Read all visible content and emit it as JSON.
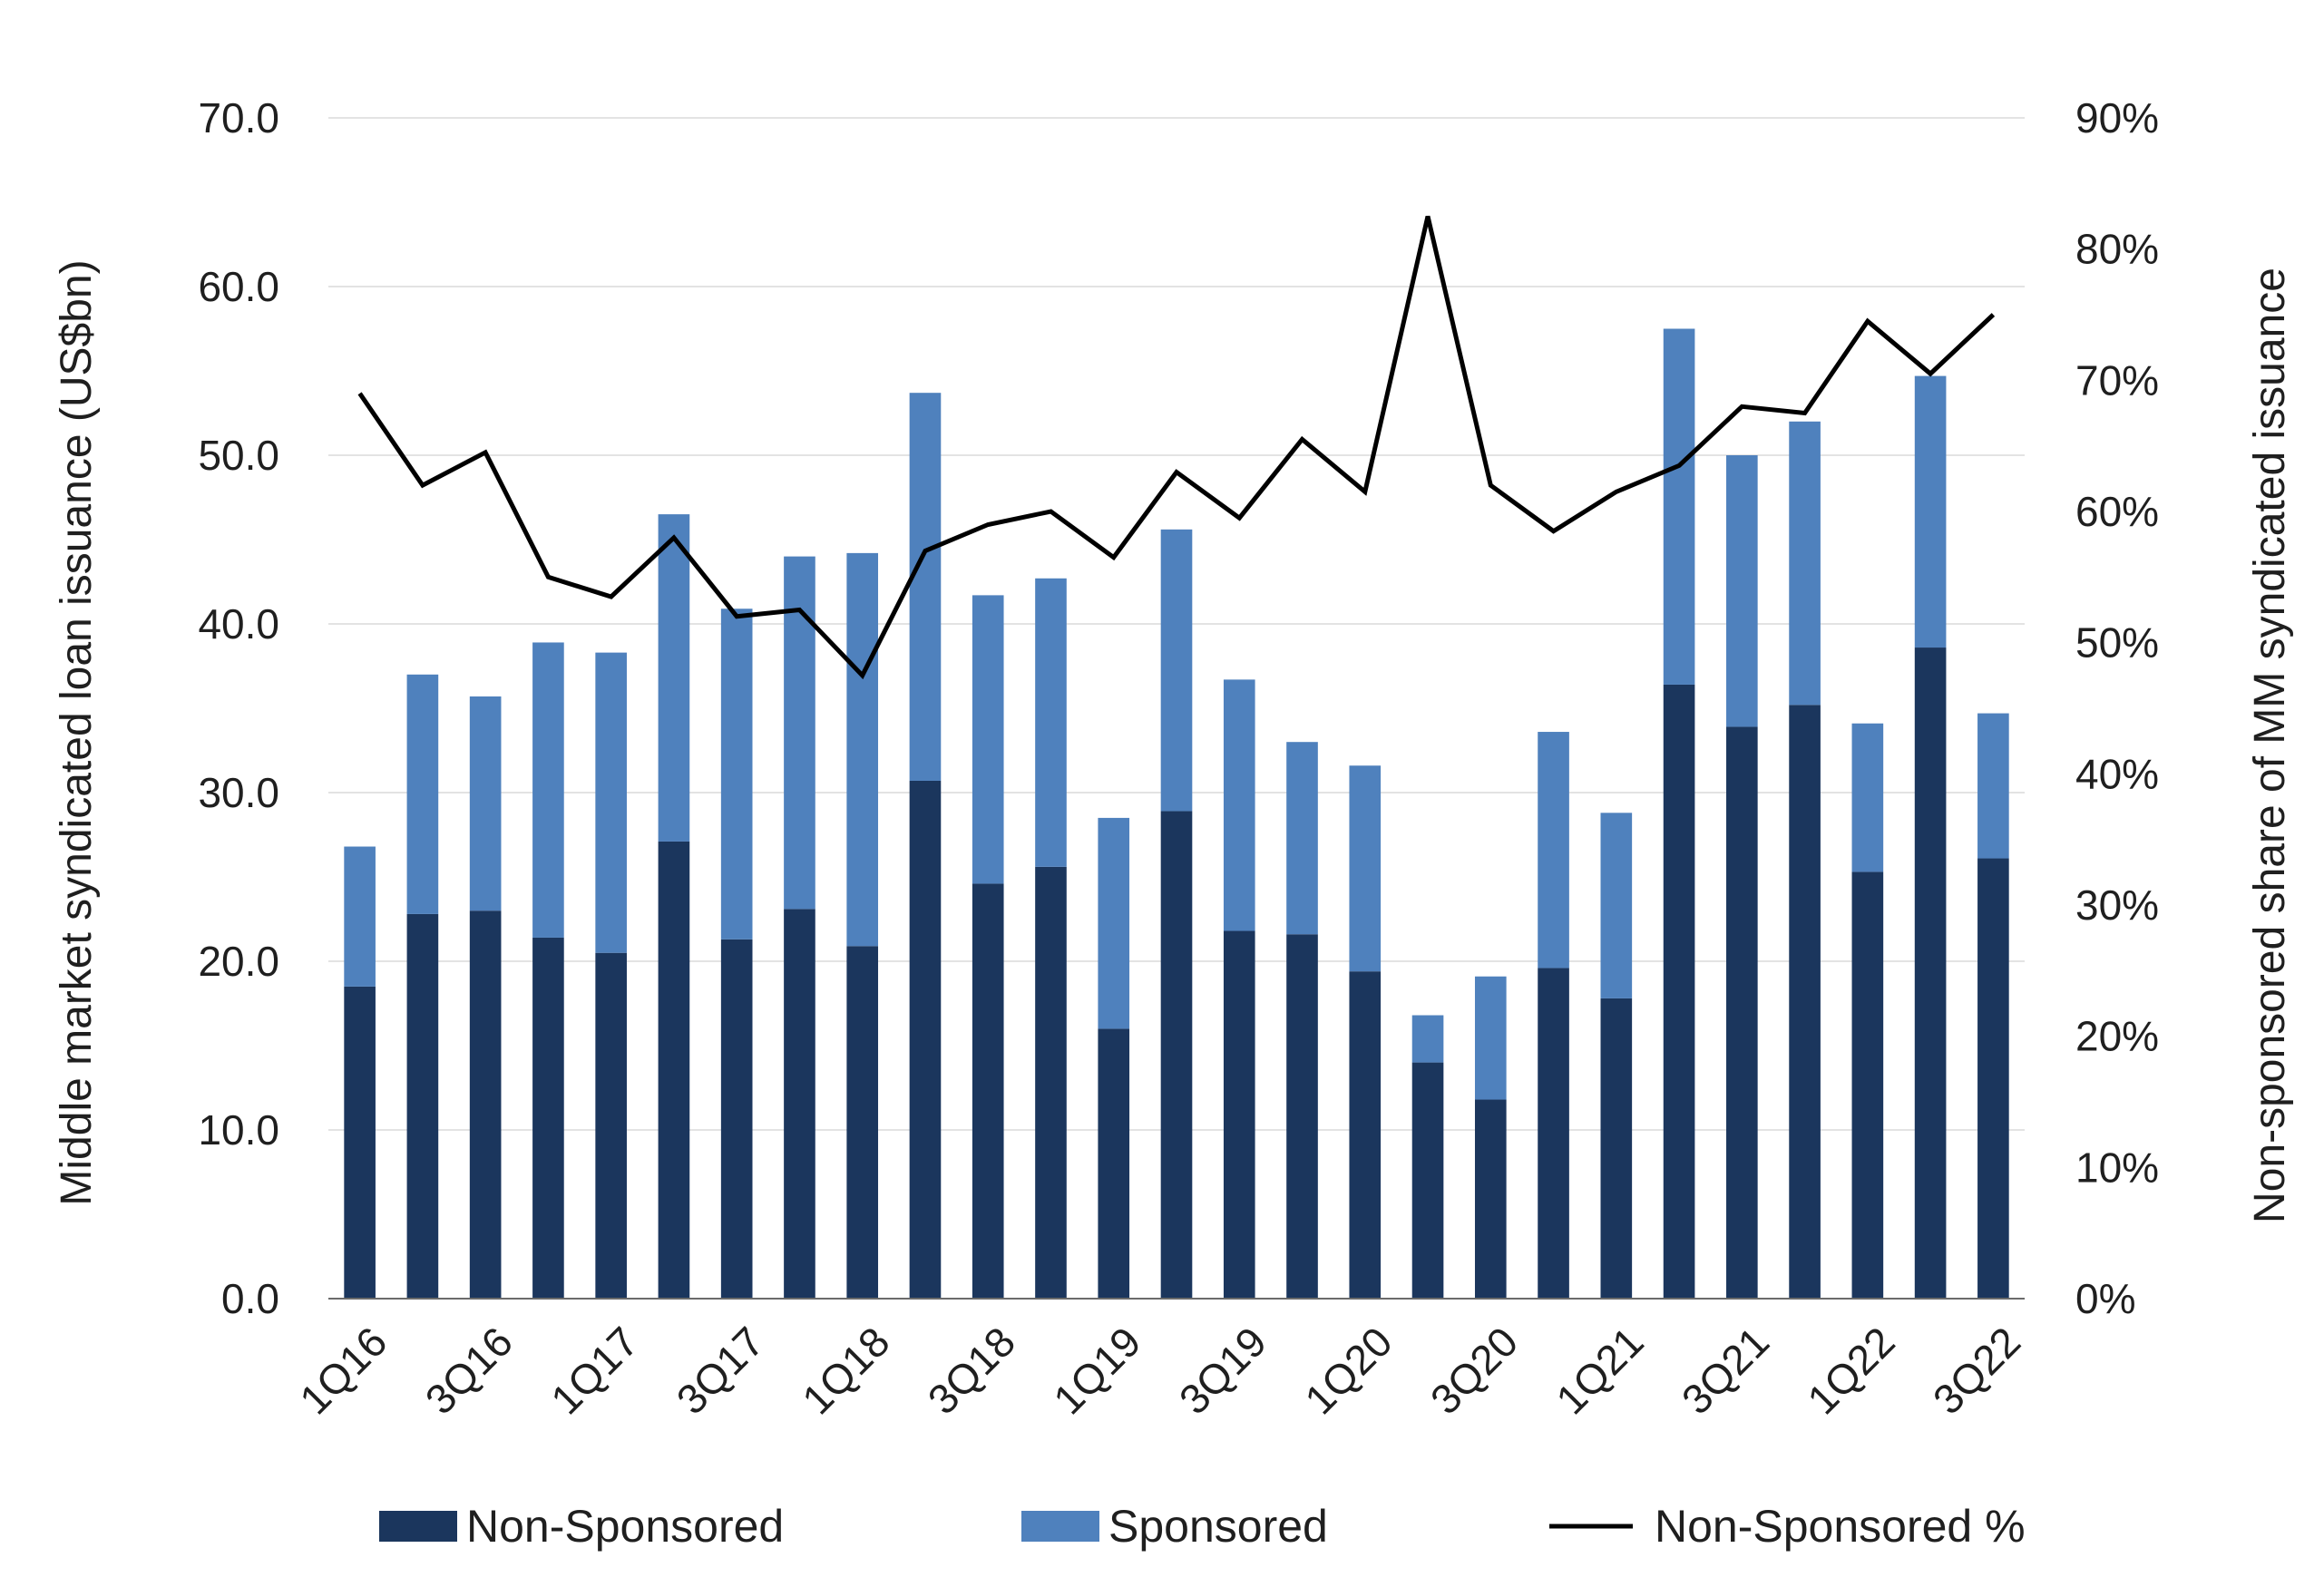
{
  "chart_data": {
    "type": "bar",
    "stacked": true,
    "categories": [
      "1Q16",
      "2Q16",
      "3Q16",
      "4Q16",
      "1Q17",
      "2Q17",
      "3Q17",
      "4Q17",
      "1Q18",
      "2Q18",
      "3Q18",
      "4Q18",
      "1Q19",
      "2Q19",
      "3Q19",
      "4Q19",
      "1Q20",
      "2Q20",
      "3Q20",
      "4Q20",
      "1Q21",
      "2Q21",
      "3Q21",
      "4Q21",
      "1Q22",
      "2Q22",
      "3Q22"
    ],
    "x_tick_labels": [
      "1Q16",
      "3Q16",
      "1Q17",
      "3Q17",
      "1Q18",
      "3Q18",
      "1Q19",
      "3Q19",
      "1Q20",
      "3Q20",
      "1Q21",
      "3Q21",
      "1Q22",
      "3Q22"
    ],
    "series": [
      {
        "name": "Non-Sponsored",
        "type": "bar",
        "axis": "left",
        "color": "#1b365d",
        "values": [
          18.5,
          22.8,
          23.0,
          21.4,
          20.5,
          27.1,
          21.3,
          23.1,
          20.9,
          30.7,
          24.6,
          25.6,
          16.0,
          28.9,
          21.8,
          21.6,
          19.4,
          14.0,
          11.8,
          19.6,
          17.8,
          36.4,
          33.9,
          35.2,
          25.3,
          38.6,
          26.1
        ]
      },
      {
        "name": "Sponsored",
        "type": "bar",
        "axis": "left",
        "color": "#4f81bd",
        "values": [
          8.3,
          14.2,
          12.7,
          17.5,
          17.8,
          19.4,
          19.6,
          20.9,
          23.3,
          23.0,
          17.1,
          17.1,
          12.5,
          16.7,
          14.9,
          11.4,
          12.2,
          2.8,
          7.3,
          14.0,
          11.0,
          21.1,
          16.1,
          16.8,
          8.8,
          16.1,
          8.6
        ]
      },
      {
        "name": "Non-Sponsored %",
        "type": "line",
        "axis": "right",
        "color": "#000000",
        "values": [
          69,
          62,
          64.5,
          55,
          53.5,
          58,
          52,
          52.5,
          47.5,
          57,
          59,
          60,
          56.5,
          63,
          59.5,
          65.5,
          61.5,
          82.5,
          62,
          58.5,
          61.5,
          63.5,
          68,
          67.5,
          74.5,
          70.5,
          75
        ]
      }
    ],
    "ylabel_left": "Middle market syndicated loan issuance (US$bn)",
    "ylabel_right": "Non-sponsored share of MM syndicated issuance",
    "ylim_left": [
      0,
      70
    ],
    "ylim_right": [
      0,
      90
    ],
    "yticks_left": [
      "0.0",
      "10.0",
      "20.0",
      "30.0",
      "40.0",
      "50.0",
      "60.0",
      "70.0"
    ],
    "yticks_right": [
      "0%",
      "10%",
      "20%",
      "30%",
      "40%",
      "50%",
      "60%",
      "70%",
      "80%",
      "90%"
    ],
    "grid": true,
    "legend_position": "bottom"
  }
}
